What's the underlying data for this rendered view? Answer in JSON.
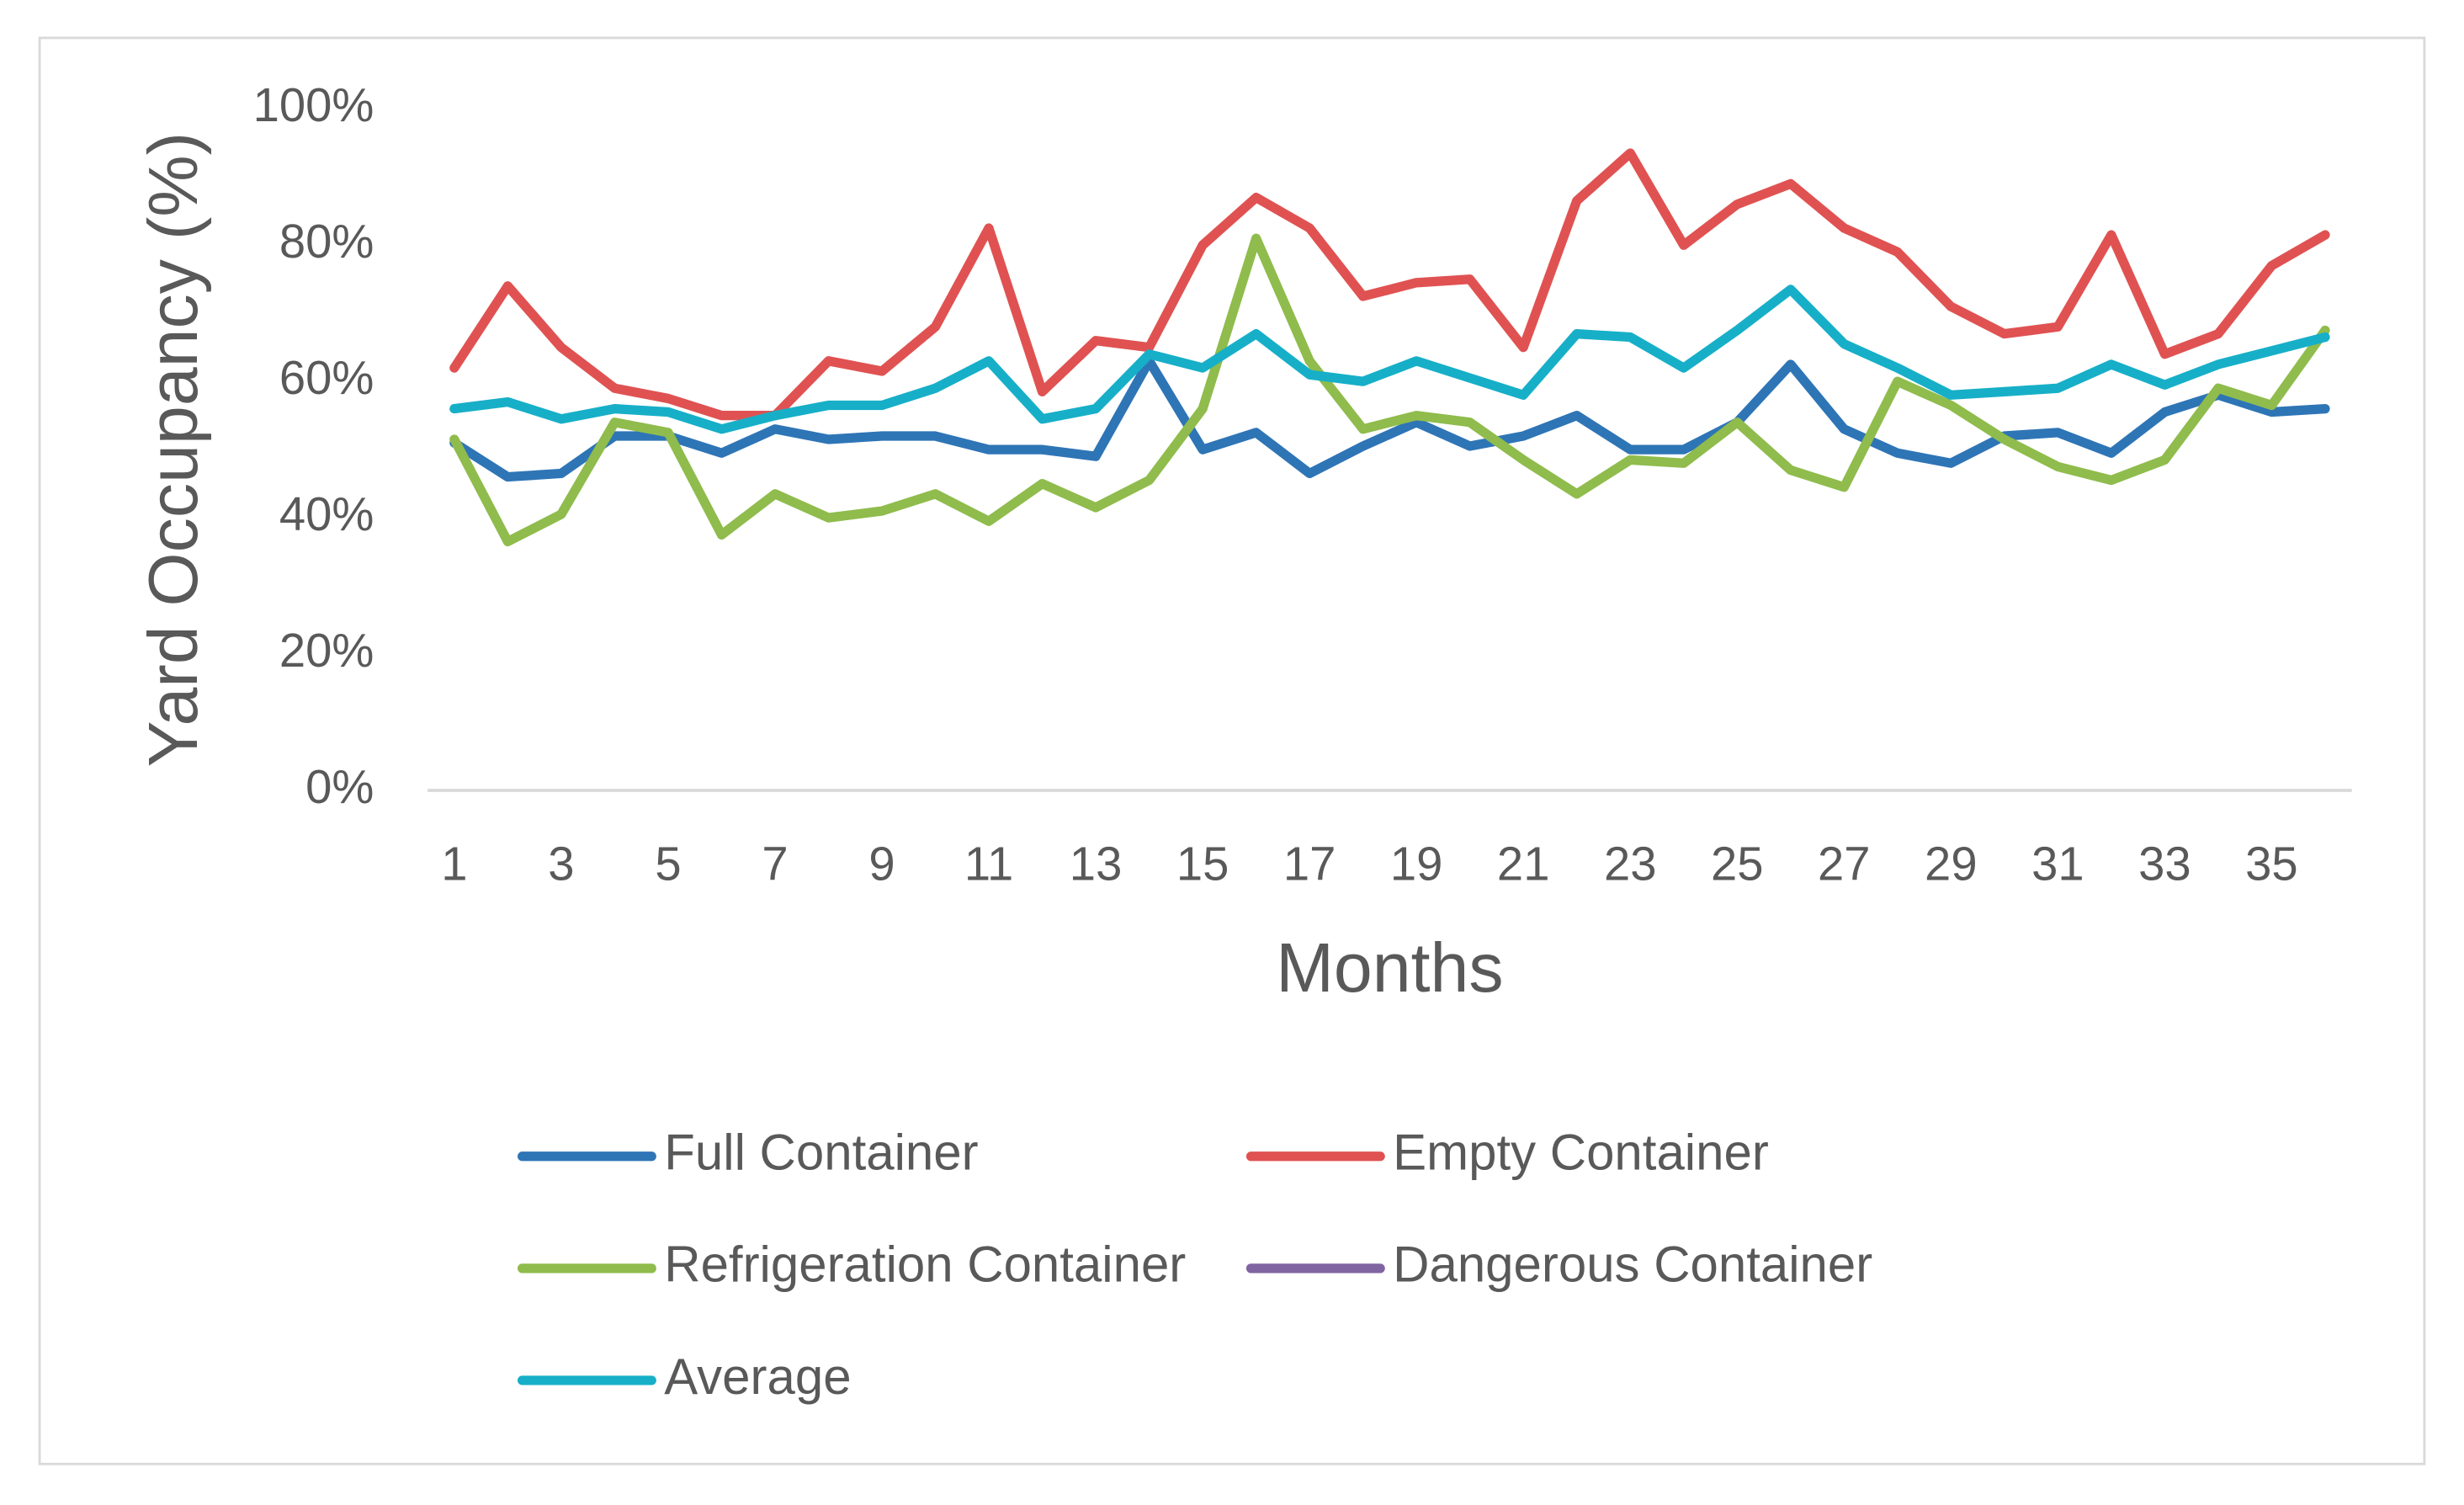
{
  "chart_data": {
    "type": "line",
    "x_label": "Months",
    "y_label": "Yard Occupancy (%)",
    "categories": [
      "1",
      null,
      "3",
      null,
      "5",
      null,
      "7",
      null,
      "9",
      null,
      "11",
      null,
      "13",
      null,
      "15",
      null,
      "17",
      null,
      "19",
      null,
      "21",
      null,
      "23",
      null,
      "25",
      null,
      "27",
      null,
      "29",
      null,
      "31",
      null,
      "33",
      null,
      "35",
      null
    ],
    "ylim": [
      0,
      100
    ],
    "yticks": [
      {
        "value": 0,
        "label": "0%"
      },
      {
        "value": 20,
        "label": "20%"
      },
      {
        "value": 40,
        "label": "40%"
      },
      {
        "value": 60,
        "label": "60%"
      },
      {
        "value": 80,
        "label": "80%"
      },
      {
        "value": 100,
        "label": "100%"
      }
    ],
    "grid": false,
    "legend": "bottom",
    "series": [
      {
        "name": "Full Container",
        "color": "#2e75b6",
        "values": [
          51,
          46,
          46.5,
          52,
          52,
          49.5,
          53,
          51.5,
          52,
          52,
          50,
          50,
          49,
          63,
          50,
          52.5,
          46.5,
          50.5,
          54,
          50.5,
          52,
          55,
          50,
          50,
          54,
          62.5,
          53,
          49.5,
          48,
          52,
          52.5,
          49.5,
          55.5,
          58,
          55.5,
          56
        ]
      },
      {
        "name": "Empty Container",
        "color": "#e05252",
        "values": [
          62,
          74,
          65,
          59,
          57.5,
          55,
          55,
          63,
          61.5,
          68,
          82.5,
          58.5,
          66,
          65,
          80,
          87,
          82.5,
          72.5,
          74.5,
          75,
          65,
          86.5,
          93.5,
          80,
          86,
          89,
          82.5,
          79,
          71,
          67,
          68,
          81.5,
          64,
          67,
          77,
          81.5
        ]
      },
      {
        "name": "Refrigeration Container",
        "color": "#8fbc4c",
        "values": [
          51.5,
          36.5,
          40.5,
          54,
          52.5,
          37.5,
          43.5,
          40,
          41,
          43.5,
          39.5,
          45,
          41.5,
          45.5,
          56,
          81,
          63,
          53,
          55,
          54,
          48.5,
          43.5,
          48.5,
          48,
          54,
          47,
          44.5,
          60,
          56.5,
          51.5,
          47.5,
          45.5,
          48.5,
          59,
          56.5,
          67.5
        ]
      },
      {
        "name": "Dangerous Container",
        "color": "#8064a2",
        "values": [
          null,
          null,
          null,
          null,
          null,
          null,
          null,
          null,
          null,
          null,
          null,
          null,
          null,
          null,
          null,
          null,
          null,
          null,
          null,
          null,
          null,
          null,
          null,
          null,
          null,
          null,
          null,
          null,
          null,
          null,
          null,
          null,
          null,
          null,
          null,
          null
        ]
      },
      {
        "name": "Average",
        "color": "#17afc8",
        "values": [
          56,
          57,
          54.5,
          56,
          55.5,
          53,
          55,
          56.5,
          56.5,
          59,
          63,
          54.5,
          56,
          64,
          62,
          67,
          61,
          60,
          63,
          60.5,
          58,
          67,
          66.5,
          62,
          67.5,
          73.5,
          65.5,
          62,
          58,
          58.5,
          59,
          62.5,
          59.5,
          62.5,
          64.5,
          66.5
        ]
      }
    ]
  }
}
